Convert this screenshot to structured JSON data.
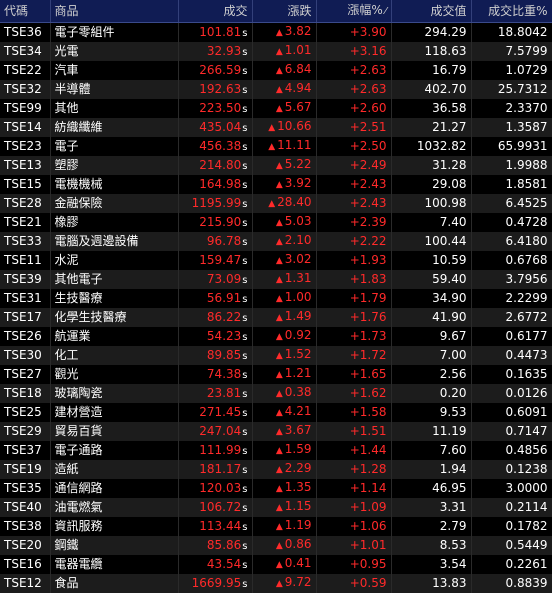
{
  "colors": {
    "header_bg": "#101c54",
    "row_even": "#000000",
    "row_odd": "#1c1c1c",
    "up": "#ff2a2a",
    "text": "#ffffff"
  },
  "header": {
    "code": "代碼",
    "name": "商品",
    "price": "成交",
    "change": "漲跌",
    "pct": "漲幅%",
    "pct_sort_icon": "sort-icon",
    "value": "成交值",
    "weight": "成交比重%"
  },
  "unit_marker": "s",
  "up_arrow": "▲",
  "rows": [
    {
      "code": "TSE36",
      "name": "電子零組件",
      "price": "101.81",
      "change": "3.82",
      "pct": "+3.90",
      "value": "294.29",
      "weight": "18.8042"
    },
    {
      "code": "TSE34",
      "name": "光電",
      "price": "32.93",
      "change": "1.01",
      "pct": "+3.16",
      "value": "118.63",
      "weight": "7.5799"
    },
    {
      "code": "TSE22",
      "name": "汽車",
      "price": "266.59",
      "change": "6.84",
      "pct": "+2.63",
      "value": "16.79",
      "weight": "1.0729"
    },
    {
      "code": "TSE32",
      "name": "半導體",
      "price": "192.63",
      "change": "4.94",
      "pct": "+2.63",
      "value": "402.70",
      "weight": "25.7312"
    },
    {
      "code": "TSE99",
      "name": "其他",
      "price": "223.50",
      "change": "5.67",
      "pct": "+2.60",
      "value": "36.58",
      "weight": "2.3370"
    },
    {
      "code": "TSE14",
      "name": "紡織纖維",
      "price": "435.04",
      "change": "10.66",
      "pct": "+2.51",
      "value": "21.27",
      "weight": "1.3587"
    },
    {
      "code": "TSE23",
      "name": "電子",
      "price": "456.38",
      "change": "11.11",
      "pct": "+2.50",
      "value": "1032.82",
      "weight": "65.9931"
    },
    {
      "code": "TSE13",
      "name": "塑膠",
      "price": "214.80",
      "change": "5.22",
      "pct": "+2.49",
      "value": "31.28",
      "weight": "1.9988"
    },
    {
      "code": "TSE15",
      "name": "電機機械",
      "price": "164.98",
      "change": "3.92",
      "pct": "+2.43",
      "value": "29.08",
      "weight": "1.8581"
    },
    {
      "code": "TSE28",
      "name": "金融保險",
      "price": "1195.99",
      "change": "28.40",
      "pct": "+2.43",
      "value": "100.98",
      "weight": "6.4525"
    },
    {
      "code": "TSE21",
      "name": "橡膠",
      "price": "215.90",
      "change": "5.03",
      "pct": "+2.39",
      "value": "7.40",
      "weight": "0.4728"
    },
    {
      "code": "TSE33",
      "name": "電腦及週邊設備",
      "price": "96.78",
      "change": "2.10",
      "pct": "+2.22",
      "value": "100.44",
      "weight": "6.4180"
    },
    {
      "code": "TSE11",
      "name": "水泥",
      "price": "159.47",
      "change": "3.02",
      "pct": "+1.93",
      "value": "10.59",
      "weight": "0.6768"
    },
    {
      "code": "TSE39",
      "name": "其他電子",
      "price": "73.09",
      "change": "1.31",
      "pct": "+1.83",
      "value": "59.40",
      "weight": "3.7956"
    },
    {
      "code": "TSE31",
      "name": "生技醫療",
      "price": "56.91",
      "change": "1.00",
      "pct": "+1.79",
      "value": "34.90",
      "weight": "2.2299"
    },
    {
      "code": "TSE17",
      "name": "化學生技醫療",
      "price": "86.22",
      "change": "1.49",
      "pct": "+1.76",
      "value": "41.90",
      "weight": "2.6772"
    },
    {
      "code": "TSE26",
      "name": "航運業",
      "price": "54.23",
      "change": "0.92",
      "pct": "+1.73",
      "value": "9.67",
      "weight": "0.6177"
    },
    {
      "code": "TSE30",
      "name": "化工",
      "price": "89.85",
      "change": "1.52",
      "pct": "+1.72",
      "value": "7.00",
      "weight": "0.4473"
    },
    {
      "code": "TSE27",
      "name": "觀光",
      "price": "74.38",
      "change": "1.21",
      "pct": "+1.65",
      "value": "2.56",
      "weight": "0.1635"
    },
    {
      "code": "TSE18",
      "name": "玻璃陶瓷",
      "price": "23.81",
      "change": "0.38",
      "pct": "+1.62",
      "value": "0.20",
      "weight": "0.0126"
    },
    {
      "code": "TSE25",
      "name": "建材營造",
      "price": "271.45",
      "change": "4.21",
      "pct": "+1.58",
      "value": "9.53",
      "weight": "0.6091"
    },
    {
      "code": "TSE29",
      "name": "貿易百貨",
      "price": "247.04",
      "change": "3.67",
      "pct": "+1.51",
      "value": "11.19",
      "weight": "0.7147"
    },
    {
      "code": "TSE37",
      "name": "電子通路",
      "price": "111.99",
      "change": "1.59",
      "pct": "+1.44",
      "value": "7.60",
      "weight": "0.4856"
    },
    {
      "code": "TSE19",
      "name": "造紙",
      "price": "181.17",
      "change": "2.29",
      "pct": "+1.28",
      "value": "1.94",
      "weight": "0.1238"
    },
    {
      "code": "TSE35",
      "name": "通信網路",
      "price": "120.03",
      "change": "1.35",
      "pct": "+1.14",
      "value": "46.95",
      "weight": "3.0000"
    },
    {
      "code": "TSE40",
      "name": "油電燃氣",
      "price": "106.72",
      "change": "1.15",
      "pct": "+1.09",
      "value": "3.31",
      "weight": "0.2114"
    },
    {
      "code": "TSE38",
      "name": "資訊服務",
      "price": "113.44",
      "change": "1.19",
      "pct": "+1.06",
      "value": "2.79",
      "weight": "0.1782"
    },
    {
      "code": "TSE20",
      "name": "鋼鐵",
      "price": "85.86",
      "change": "0.86",
      "pct": "+1.01",
      "value": "8.53",
      "weight": "0.5449"
    },
    {
      "code": "TSE16",
      "name": "電器電纜",
      "price": "43.54",
      "change": "0.41",
      "pct": "+0.95",
      "value": "3.54",
      "weight": "0.2261"
    },
    {
      "code": "TSE12",
      "name": "食品",
      "price": "1669.95",
      "change": "9.72",
      "pct": "+0.59",
      "value": "13.83",
      "weight": "0.8839"
    }
  ]
}
